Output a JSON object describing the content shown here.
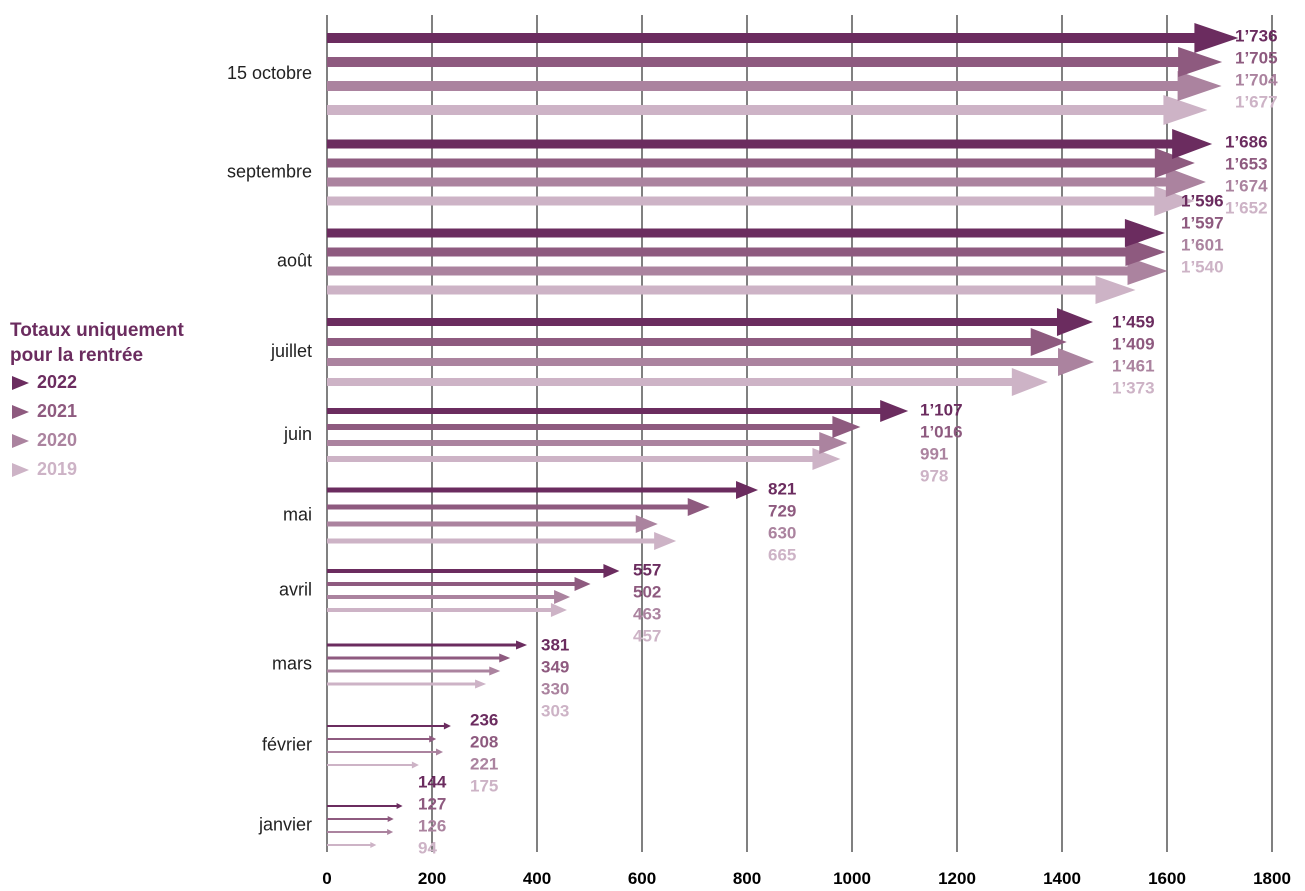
{
  "legend": {
    "title": "Totaux uniquement pour la rentrée",
    "items": [
      {
        "label": "2022",
        "color": "#6b2c5f"
      },
      {
        "label": "2021",
        "color": "#8e5a7f"
      },
      {
        "label": "2020",
        "color": "#ab839f"
      },
      {
        "label": "2019",
        "color": "#cdb3c6"
      }
    ]
  },
  "chart_data": {
    "type": "bar",
    "orientation": "horizontal",
    "categories": [
      "15 octobre",
      "septembre",
      "août",
      "juillet",
      "juin",
      "mai",
      "avril",
      "mars",
      "février",
      "janvier"
    ],
    "series": [
      {
        "name": "2022",
        "color": "#6b2c5f",
        "values": [
          1736,
          1686,
          1596,
          1459,
          1107,
          821,
          557,
          381,
          236,
          144
        ]
      },
      {
        "name": "2021",
        "color": "#8e5a7f",
        "values": [
          1705,
          1653,
          1597,
          1409,
          1016,
          729,
          502,
          349,
          208,
          127
        ]
      },
      {
        "name": "2020",
        "color": "#ab839f",
        "values": [
          1704,
          1674,
          1601,
          1461,
          991,
          630,
          463,
          330,
          221,
          126
        ]
      },
      {
        "name": "2019",
        "color": "#cdb3c6",
        "values": [
          1677,
          1652,
          1540,
          1373,
          978,
          665,
          457,
          303,
          175,
          94
        ]
      }
    ],
    "value_labels": [
      [
        "1’736",
        "1’705",
        "1’704",
        "1’677"
      ],
      [
        "1’686",
        "1’653",
        "1’674",
        "1’652"
      ],
      [
        "1’596",
        "1’597",
        "1’601",
        "1’540"
      ],
      [
        "1’459",
        "1’409",
        "1’461",
        "1’373"
      ],
      [
        "1’107",
        "1’016",
        "991",
        "978"
      ],
      [
        "821",
        "729",
        "630",
        "665"
      ],
      [
        "557",
        "502",
        "463",
        "457"
      ],
      [
        "381",
        "349",
        "330",
        "303"
      ],
      [
        "236",
        "208",
        "221",
        "175"
      ],
      [
        "144",
        "127",
        "126",
        "94"
      ]
    ],
    "xticks": [
      "0",
      "200",
      "400",
      "600",
      "800",
      "1000",
      "1200",
      "1400",
      "1600",
      "1800"
    ],
    "xlim": [
      0,
      1800
    ],
    "grid": "vertical"
  }
}
